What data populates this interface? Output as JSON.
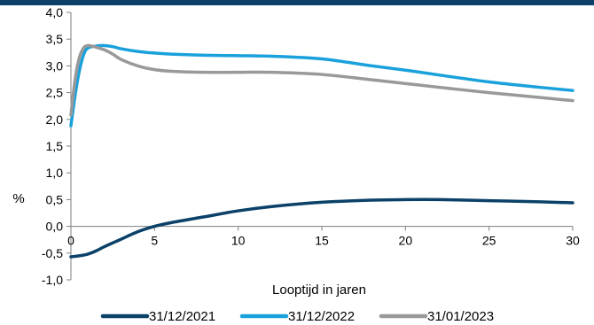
{
  "chart_data": {
    "type": "line",
    "title": "",
    "xlabel": "Looptijd in jaren",
    "ylabel": "%",
    "xlim": [
      0,
      30
    ],
    "ylim": [
      -1.0,
      4.0
    ],
    "x_ticks": [
      "0",
      "5",
      "10",
      "15",
      "20",
      "25",
      "30"
    ],
    "x_tick_values": [
      0,
      5,
      10,
      15,
      20,
      25,
      30
    ],
    "y_ticks": [
      "-1,0",
      "-0,5",
      "0,0",
      "0,5",
      "1,0",
      "1,5",
      "2,0",
      "2,5",
      "3,0",
      "3,5",
      "4,0"
    ],
    "y_tick_values": [
      -1.0,
      -0.5,
      0.0,
      0.5,
      1.0,
      1.5,
      2.0,
      2.5,
      3.0,
      3.5,
      4.0
    ],
    "grid": false,
    "legend_position": "bottom",
    "series": [
      {
        "name": "31/12/2021",
        "color": "#0b4168",
        "x": [
          0,
          0.5,
          1,
          1.5,
          2,
          3,
          4,
          5,
          6,
          8,
          10,
          12,
          15,
          18,
          20,
          22,
          25,
          28,
          30
        ],
        "y": [
          -0.57,
          -0.55,
          -0.52,
          -0.46,
          -0.38,
          -0.24,
          -0.1,
          0.0,
          0.07,
          0.18,
          0.29,
          0.37,
          0.45,
          0.49,
          0.5,
          0.5,
          0.48,
          0.46,
          0.44
        ]
      },
      {
        "name": "31/12/2022",
        "color": "#1aa1dc",
        "x": [
          0,
          0.25,
          0.5,
          0.75,
          1,
          1.5,
          2,
          2.5,
          3,
          4,
          5,
          6,
          8,
          10,
          12,
          15,
          18,
          20,
          22,
          25,
          28,
          30
        ],
        "y": [
          1.88,
          2.45,
          2.9,
          3.2,
          3.33,
          3.37,
          3.38,
          3.36,
          3.32,
          3.27,
          3.24,
          3.22,
          3.2,
          3.19,
          3.18,
          3.13,
          3.0,
          2.92,
          2.83,
          2.7,
          2.6,
          2.54
        ]
      },
      {
        "name": "31/01/2023",
        "color": "#999999",
        "x": [
          0,
          0.25,
          0.5,
          0.75,
          1,
          1.5,
          2,
          2.5,
          3,
          4,
          5,
          6,
          8,
          10,
          12,
          15,
          18,
          20,
          22,
          25,
          28,
          30
        ],
        "y": [
          2.08,
          2.75,
          3.15,
          3.33,
          3.38,
          3.35,
          3.3,
          3.22,
          3.12,
          3.0,
          2.93,
          2.9,
          2.88,
          2.88,
          2.88,
          2.84,
          2.74,
          2.67,
          2.6,
          2.5,
          2.41,
          2.35
        ]
      }
    ]
  }
}
